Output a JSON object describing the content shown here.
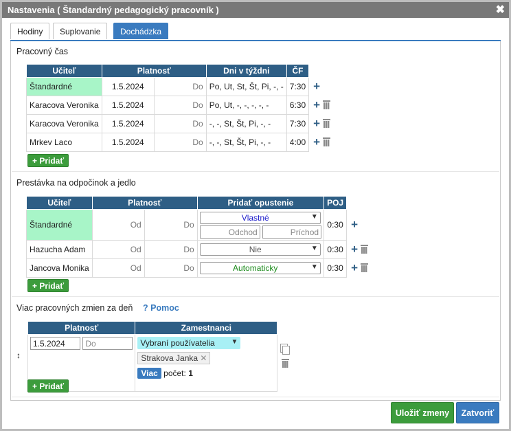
{
  "window": {
    "title": "Nastavenia ( Štandardný pedagogický pracovník )",
    "close_glyph": "✖"
  },
  "tabs": [
    {
      "label": "Hodiny"
    },
    {
      "label": "Suplovanie"
    },
    {
      "label": "Dochádzka",
      "active": true
    }
  ],
  "pracovny_cas": {
    "title": "Pracovný čas",
    "columns": [
      "Učiteľ",
      "Platnosť",
      "Dni v týždni",
      "ČF"
    ],
    "rows": [
      {
        "teacher": "Štandardné",
        "from": "1.5.2024",
        "to": "Do",
        "days": "Po, Ut, St, Št, Pi, -, -",
        "hours": "7:30"
      },
      {
        "teacher": "Karacova Veronika",
        "from": "1.5.2024",
        "to": "Do",
        "days": "Po, Ut, -, -, -, -, -",
        "hours": "6:30"
      },
      {
        "teacher": "Karacova Veronika",
        "from": "1.5.2024",
        "to": "Do",
        "days": "-, -, St, Št, Pi, -, -",
        "hours": "7:30"
      },
      {
        "teacher": "Mrkev Laco",
        "from": "1.5.2024",
        "to": "Do",
        "days": "-, -, St, Št, Pi, -, -",
        "hours": "4:00"
      }
    ],
    "add_label": "+ Pridať"
  },
  "prestavka": {
    "title": "Prestávka na odpočinok a jedlo",
    "columns": [
      "Učiteľ",
      "Platnosť",
      "Pridať opustenie",
      "POJ"
    ],
    "rows": [
      {
        "teacher": "Štandardné",
        "from": "Od",
        "to": "Do",
        "option": "Vlastné",
        "option_color": "#2222cc",
        "odchod": "Odchod",
        "prichod": "Príchod",
        "poj": "0:30"
      },
      {
        "teacher": "Hazucha Adam",
        "from": "Od",
        "to": "Do",
        "option": "Nie",
        "option_color": "#555555",
        "poj": "0:30"
      },
      {
        "teacher": "Jancova Monika",
        "from": "Od",
        "to": "Do",
        "option": "Automaticky",
        "option_color": "#1a8a1a",
        "poj": "0:30"
      }
    ],
    "add_label": "+ Pridať"
  },
  "viac_zmien": {
    "title": "Viac pracovných zmien za deň",
    "help_label": "? Pomoc",
    "columns": [
      "Platnosť",
      "Zamestnanci"
    ],
    "row": {
      "from": "1.5.2024",
      "to_placeholder": "Do",
      "select": "Vybraní používatelia",
      "tag": "Strakova Janka",
      "tag_remove": "✕",
      "more": "Viac",
      "count_label": "počet:",
      "count": "1",
      "sort_glyph": "↕"
    },
    "add_label": "+ Pridať"
  },
  "footer": {
    "save": "Uložiť zmeny",
    "close": "Zatvoriť"
  },
  "colors": {
    "header": "#2e5e85",
    "accent": "#3a7bbf",
    "standard_row": "#a8f5c8",
    "add": "#3c9c3c"
  }
}
